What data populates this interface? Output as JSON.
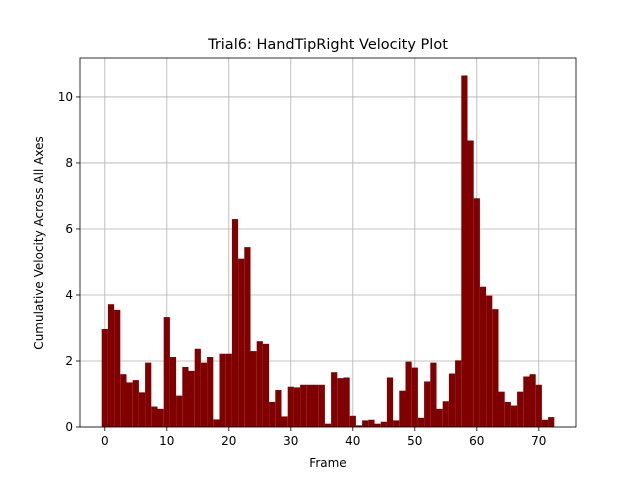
{
  "chart_data": {
    "type": "bar",
    "title": "Trial6: HandTipRight Velocity Plot",
    "xlabel": "Frame",
    "ylabel": "Cumulative Velocity Across All Axes",
    "x": [
      0,
      1,
      2,
      3,
      4,
      5,
      6,
      7,
      8,
      9,
      10,
      11,
      12,
      13,
      14,
      15,
      16,
      17,
      18,
      19,
      20,
      21,
      22,
      23,
      24,
      25,
      26,
      27,
      28,
      29,
      30,
      31,
      32,
      33,
      34,
      35,
      36,
      37,
      38,
      39,
      40,
      41,
      42,
      43,
      44,
      45,
      46,
      47,
      48,
      49,
      50,
      51,
      52,
      53,
      54,
      55,
      56,
      57,
      58,
      59,
      60,
      61,
      62,
      63,
      64,
      65,
      66,
      67,
      68,
      69,
      70,
      71,
      72
    ],
    "values": [
      2.97,
      3.72,
      3.55,
      1.6,
      1.35,
      1.42,
      1.05,
      1.95,
      0.62,
      0.55,
      3.33,
      2.12,
      0.95,
      1.82,
      1.7,
      2.37,
      1.95,
      2.12,
      0.23,
      2.22,
      2.22,
      6.3,
      5.1,
      5.45,
      2.3,
      2.6,
      2.52,
      0.76,
      1.12,
      0.32,
      1.22,
      1.2,
      1.28,
      1.28,
      1.28,
      1.28,
      0.1,
      1.66,
      1.48,
      1.5,
      0.34,
      0.05,
      0.2,
      0.22,
      0.1,
      0.16,
      1.5,
      0.2,
      1.1,
      1.98,
      1.8,
      0.28,
      1.38,
      1.95,
      0.55,
      0.78,
      1.62,
      2.02,
      10.65,
      8.68,
      6.93,
      4.25,
      3.98,
      3.57,
      1.07,
      0.76,
      0.65,
      1.07,
      1.53,
      1.6,
      1.28,
      0.22,
      0.3
    ],
    "xlim": [
      -4,
      76
    ],
    "ylim": [
      0,
      11.18
    ],
    "xticks": [
      0,
      10,
      20,
      30,
      40,
      50,
      60,
      70
    ],
    "yticks": [
      0,
      2,
      4,
      6,
      8,
      10
    ],
    "grid": true,
    "bar_color": "#800000"
  }
}
